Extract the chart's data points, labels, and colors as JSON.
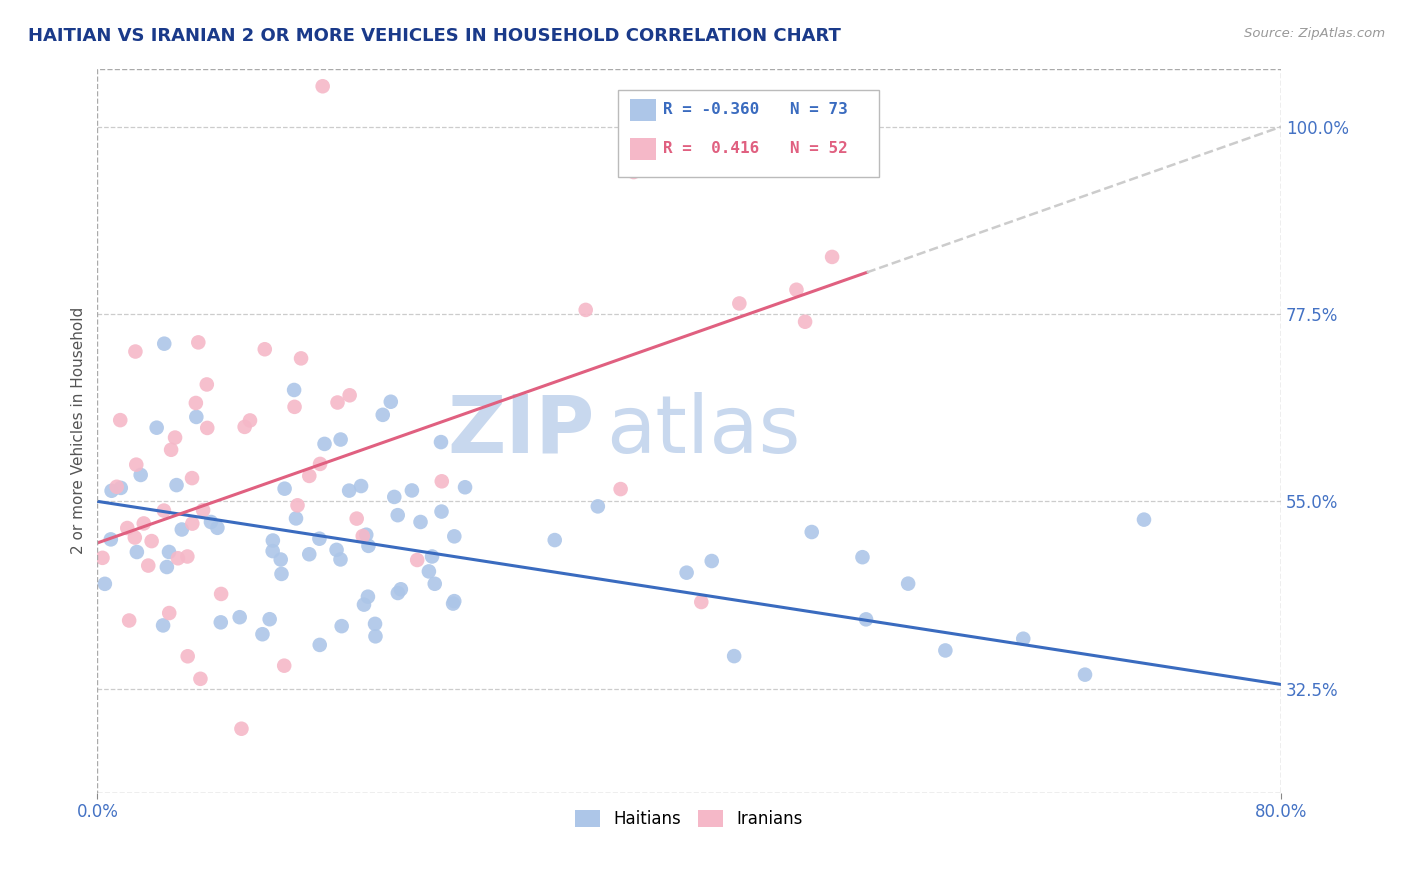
{
  "title": "HAITIAN VS IRANIAN 2 OR MORE VEHICLES IN HOUSEHOLD CORRELATION CHART",
  "source": "Source: ZipAtlas.com",
  "ylabel": "2 or more Vehicles in Household",
  "y_ticks": [
    32.5,
    55.0,
    77.5,
    100.0
  ],
  "y_tick_labels": [
    "32.5%",
    "55.0%",
    "77.5%",
    "100.0%"
  ],
  "xlim": [
    0.0,
    80.0
  ],
  "ylim": [
    20.0,
    107.0
  ],
  "haitian_R": -0.36,
  "haitian_N": 73,
  "iranian_R": 0.416,
  "iranian_N": 52,
  "haitian_color": "#adc6e8",
  "iranian_color": "#f5b8c8",
  "haitian_line_color": "#3a6bbf",
  "iranian_line_color": "#e06080",
  "haitian_line_dashed_color": "#c0c0c0",
  "watermark_zip": "ZIP",
  "watermark_atlas": "atlas",
  "watermark_color": "#c8d8ee",
  "background_color": "#ffffff",
  "title_color": "#1a3a8a",
  "source_color": "#999999",
  "legend_R_haitian": "R = -0.360",
  "legend_N_haitian": "N = 73",
  "legend_R_iranian": "R =  0.416",
  "legend_N_iranian": "N = 52",
  "haitian_seed": 12345,
  "iranian_seed": 67890
}
